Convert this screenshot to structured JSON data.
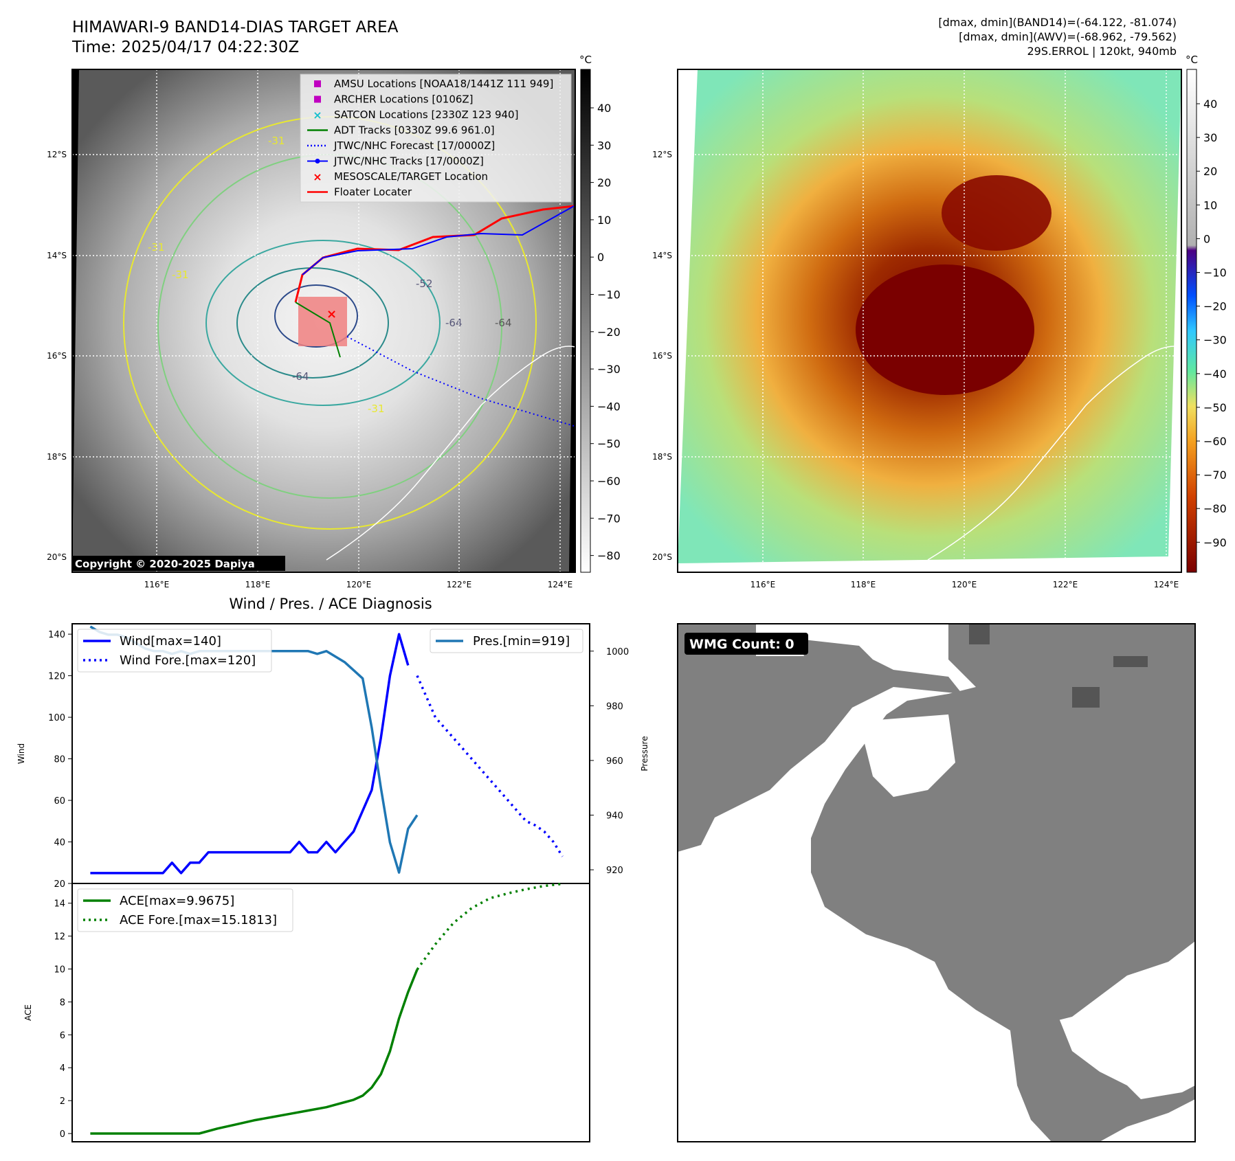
{
  "header": {
    "title_line1": "HIMAWARI-9 BAND14-DIAS TARGET AREA",
    "title_line2": "Time: 2025/04/17 04:22:30Z",
    "meta_line1": "[dmax, dmin](BAND14)=(-64.122, -81.074)",
    "meta_line2": "[dmax, dmin](AWV)=(-68.962, -79.562)",
    "meta_line3": "29S.ERROL | 120kt, 940mb"
  },
  "map_left": {
    "lat_labels": [
      "12°S",
      "14°S",
      "16°S",
      "18°S",
      "20°S"
    ],
    "lon_labels": [
      "116°E",
      "118°E",
      "120°E",
      "122°E",
      "124°E"
    ],
    "copyright": "Copyright © 2020-2025 Dapiya",
    "contour_labels": [
      "-31",
      "-31",
      "-31",
      "-64",
      "-64",
      "-64",
      "-52",
      "-31"
    ],
    "legend": [
      {
        "label": "AMSU Locations [NOAA18/1441Z 111 949]",
        "marker": "square",
        "color": "#c000c0"
      },
      {
        "label": "ARCHER Locations [0106Z]",
        "marker": "square",
        "color": "#c000c0"
      },
      {
        "label": "SATCON Locations [2330Z 123 940]",
        "marker": "x",
        "color": "#17bfcf"
      },
      {
        "label": "ADT Tracks [0330Z 99.6 961.0]",
        "marker": "line",
        "color": "#008000"
      },
      {
        "label": "JTWC/NHC Forecast [17/0000Z]",
        "marker": "dotted",
        "color": "#0000ff"
      },
      {
        "label": "JTWC/NHC Tracks [17/0000Z]",
        "marker": "line-dot",
        "color": "#0000ff"
      },
      {
        "label": "MESOSCALE/TARGET Location",
        "marker": "x",
        "color": "#ff0000"
      },
      {
        "label": "Floater Locater",
        "marker": "line",
        "color": "#ff0000"
      }
    ],
    "colorbar": {
      "unit": "°C",
      "ticks": [
        "40",
        "30",
        "20",
        "10",
        "0",
        "−10",
        "−20",
        "−30",
        "−40",
        "−50",
        "−60",
        "−70",
        "−80"
      ]
    }
  },
  "map_right": {
    "lat_labels": [
      "12°S",
      "14°S",
      "16°S",
      "18°S",
      "20°S"
    ],
    "lon_labels": [
      "116°E",
      "118°E",
      "120°E",
      "122°E",
      "124°E"
    ],
    "colorbar": {
      "unit": "°C",
      "ticks": [
        "40",
        "30",
        "20",
        "10",
        "0",
        "−10",
        "−20",
        "−30",
        "−40",
        "−50",
        "−60",
        "−70",
        "−80",
        "−90"
      ]
    }
  },
  "wmg": {
    "label": "WMG Count: 0"
  },
  "colors": {
    "wind": "#0000ff",
    "pressure": "#1f77b4",
    "ace": "#008000",
    "floater": "#ff0000",
    "wmg_gray": "#808080"
  },
  "chart_data": [
    {
      "type": "line",
      "title": "Wind / Pres. / ACE Diagnosis",
      "ylabel": "Wind",
      "ylim": [
        20,
        145
      ],
      "y_ticks": [
        20,
        40,
        60,
        80,
        100,
        120,
        140
      ],
      "y2label": "Pressure",
      "y2lim": [
        915,
        1010
      ],
      "y2_ticks": [
        920,
        940,
        960,
        980,
        1000
      ],
      "series": [
        {
          "name": "Wind[max=140]",
          "axis": "left",
          "style": "solid",
          "x": [
            0,
            1,
            2,
            3,
            4,
            5,
            6,
            7,
            8,
            9,
            10,
            11,
            12,
            13,
            14,
            15,
            16,
            17,
            18,
            19,
            20,
            21,
            22,
            23,
            24,
            25,
            26,
            27,
            28,
            29,
            30,
            31,
            32,
            33,
            34,
            35
          ],
          "values": [
            25,
            25,
            25,
            25,
            25,
            25,
            25,
            25,
            25,
            30,
            25,
            30,
            30,
            35,
            35,
            35,
            35,
            35,
            35,
            35,
            35,
            35,
            35,
            40,
            35,
            35,
            40,
            35,
            40,
            45,
            55,
            65,
            90,
            120,
            140,
            125
          ]
        },
        {
          "name": "Wind Fore.[max=120]",
          "axis": "left",
          "style": "dotted",
          "x": [
            36,
            37,
            38,
            39,
            40,
            41,
            42,
            43,
            44,
            45,
            46,
            47,
            48,
            49,
            50,
            51,
            52
          ],
          "values": [
            120,
            110,
            100,
            95,
            90,
            85,
            80,
            75,
            70,
            65,
            60,
            55,
            50,
            48,
            45,
            40,
            33
          ]
        },
        {
          "name": "Pres.[min=919]",
          "axis": "right",
          "style": "solid",
          "x": [
            0,
            1,
            2,
            3,
            4,
            5,
            6,
            7,
            8,
            9,
            10,
            11,
            12,
            13,
            14,
            15,
            16,
            17,
            18,
            19,
            20,
            21,
            22,
            23,
            24,
            25,
            26,
            27,
            28,
            29,
            30,
            31,
            32,
            33,
            34,
            35,
            36
          ],
          "values": [
            1009,
            1007,
            1006,
            1006,
            1005,
            1003,
            1001,
            1000,
            1000,
            999,
            1000,
            999,
            1000,
            1000,
            1000,
            1000,
            1000,
            1000,
            1000,
            1000,
            1000,
            1000,
            1000,
            1000,
            1000,
            999,
            1000,
            998,
            996,
            993,
            990,
            972,
            950,
            930,
            919,
            935,
            940
          ]
        }
      ]
    },
    {
      "type": "line",
      "ylabel": "ACE",
      "ylim": [
        -0.5,
        15.2
      ],
      "y_ticks": [
        0,
        2,
        4,
        6,
        8,
        10,
        12,
        14
      ],
      "series": [
        {
          "name": "ACE[max=9.9675]",
          "style": "solid",
          "x": [
            0,
            2,
            4,
            6,
            8,
            10,
            12,
            14,
            16,
            18,
            20,
            22,
            24,
            26,
            27,
            28,
            29,
            30,
            31,
            32,
            33,
            34,
            35,
            36
          ],
          "values": [
            0,
            0,
            0,
            0,
            0,
            0,
            0,
            0.3,
            0.55,
            0.8,
            1.0,
            1.2,
            1.4,
            1.6,
            1.75,
            1.9,
            2.05,
            2.3,
            2.8,
            3.6,
            5.0,
            7.0,
            8.6,
            9.97
          ]
        },
        {
          "name": "ACE Fore.[max=15.1813]",
          "style": "dotted",
          "x": [
            36,
            38,
            40,
            42,
            44,
            46,
            48,
            50,
            52
          ],
          "values": [
            9.97,
            11.5,
            12.8,
            13.7,
            14.3,
            14.6,
            14.85,
            15.05,
            15.18
          ]
        }
      ]
    }
  ]
}
